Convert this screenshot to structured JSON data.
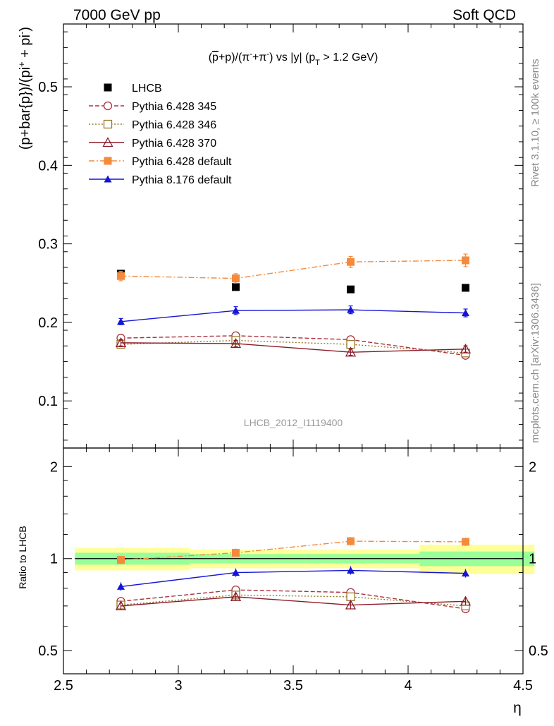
{
  "header": {
    "left": "7000 GeV pp",
    "right": "Soft QCD"
  },
  "side_labels": {
    "rivet": "Rivet 3.1.10, ≥ 100k events",
    "mcplots": "mcplots.cern.ch [arXiv:1306.3436]"
  },
  "chart_data": [
    {
      "type": "scatter",
      "panel": "main",
      "title_parts": [
        "(",
        "p",
        "+p)/(π",
        "-",
        "+π",
        "-",
        ") vs |y| (p",
        "T",
        " > 1.2 GeV)"
      ],
      "ylabel_parts": [
        "(p+bar{p})/(pi",
        "+",
        " + pi",
        "-",
        ")"
      ],
      "xlim": [
        2.5,
        4.5
      ],
      "ylim": [
        0.04,
        0.58
      ],
      "y_ticks": [
        0.1,
        0.2,
        0.3,
        0.4,
        0.5
      ],
      "y_tick_labels": [
        "0.1",
        "0.2",
        "0.3",
        "0.4",
        "0.5"
      ],
      "watermark": "LHCB_2012_I1119400",
      "legend_position": "top-left",
      "x": [
        2.75,
        3.25,
        3.75,
        4.25
      ],
      "series": [
        {
          "name": "LHCB",
          "kind": "data",
          "color": "#000000",
          "marker": "square-filled",
          "line": "none",
          "values": [
            0.262,
            0.245,
            0.242,
            0.244
          ]
        },
        {
          "name": "Pythia 6.428 345",
          "kind": "mc",
          "color": "#a83240",
          "marker": "circle-open",
          "line": "dashed",
          "values": [
            0.18,
            0.183,
            0.178,
            0.158
          ],
          "errors": [
            0.003,
            0.003,
            0.003,
            0.003
          ]
        },
        {
          "name": "Pythia 6.428 346",
          "kind": "mc",
          "color": "#9a7a2a",
          "marker": "square-open",
          "line": "dotted",
          "values": [
            0.172,
            0.177,
            0.172,
            0.161
          ],
          "errors": [
            0.003,
            0.003,
            0.003,
            0.003
          ]
        },
        {
          "name": "Pythia 6.428 370",
          "kind": "mc",
          "color": "#8b1a2a",
          "marker": "triangle-open",
          "line": "solid",
          "values": [
            0.174,
            0.173,
            0.162,
            0.166
          ],
          "errors": [
            0.004,
            0.004,
            0.004,
            0.004
          ]
        },
        {
          "name": "Pythia 6.428 default",
          "kind": "mc",
          "color": "#f58a3c",
          "marker": "square-filled",
          "line": "dashdot",
          "values": [
            0.259,
            0.256,
            0.277,
            0.279
          ],
          "errors": [
            0.006,
            0.006,
            0.007,
            0.008
          ]
        },
        {
          "name": "Pythia 8.176 default",
          "kind": "mc",
          "color": "#1515d6",
          "marker": "triangle-filled",
          "line": "solid",
          "values": [
            0.201,
            0.215,
            0.216,
            0.212
          ],
          "errors": [
            0.004,
            0.005,
            0.005,
            0.005
          ]
        }
      ]
    },
    {
      "type": "scatter",
      "panel": "ratio",
      "ylabel": "Ratio to LHCB",
      "xlabel": "η",
      "xlim": [
        2.5,
        4.5
      ],
      "ylim": [
        0.42,
        2.3
      ],
      "log_y": true,
      "x_ticks": [
        2.5,
        3,
        3.5,
        4,
        4.5
      ],
      "x_tick_labels": [
        "2.5",
        "3",
        "3.5",
        "4",
        "4.5"
      ],
      "y_ticks": [
        0.5,
        1,
        2
      ],
      "y_tick_labels": [
        "0.5",
        "1",
        "2"
      ],
      "bands": [
        {
          "x": [
            2.5,
            3.0
          ],
          "yellow": [
            0.915,
            1.085
          ],
          "green": [
            0.955,
            1.045
          ]
        },
        {
          "x": [
            3.0,
            3.5
          ],
          "yellow": [
            0.93,
            1.07
          ],
          "green": [
            0.965,
            1.035
          ]
        },
        {
          "x": [
            3.5,
            4.0
          ],
          "yellow": [
            0.93,
            1.07
          ],
          "green": [
            0.965,
            1.035
          ]
        },
        {
          "x": [
            4.0,
            4.5
          ],
          "yellow": [
            0.89,
            1.11
          ],
          "green": [
            0.945,
            1.055
          ]
        }
      ],
      "x": [
        2.75,
        3.25,
        3.75,
        4.25
      ],
      "series": [
        {
          "name": "Pythia 6.428 345",
          "color": "#a83240",
          "marker": "circle-open",
          "line": "dashed",
          "values": [
            0.725,
            0.79,
            0.775,
            0.685
          ]
        },
        {
          "name": "Pythia 6.428 346",
          "color": "#9a7a2a",
          "marker": "square-open",
          "line": "dotted",
          "values": [
            0.705,
            0.76,
            0.75,
            0.7
          ]
        },
        {
          "name": "Pythia 6.428 370",
          "color": "#8b1a2a",
          "marker": "triangle-open",
          "line": "solid",
          "values": [
            0.7,
            0.75,
            0.705,
            0.725
          ]
        },
        {
          "name": "Pythia 6.428 default",
          "color": "#f58a3c",
          "marker": "square-filled",
          "line": "dashdot",
          "values": [
            0.99,
            1.045,
            1.14,
            1.135
          ]
        },
        {
          "name": "Pythia 8.176 default",
          "color": "#1515d6",
          "marker": "triangle-filled",
          "line": "solid",
          "values": [
            0.81,
            0.9,
            0.915,
            0.895
          ]
        }
      ]
    }
  ]
}
